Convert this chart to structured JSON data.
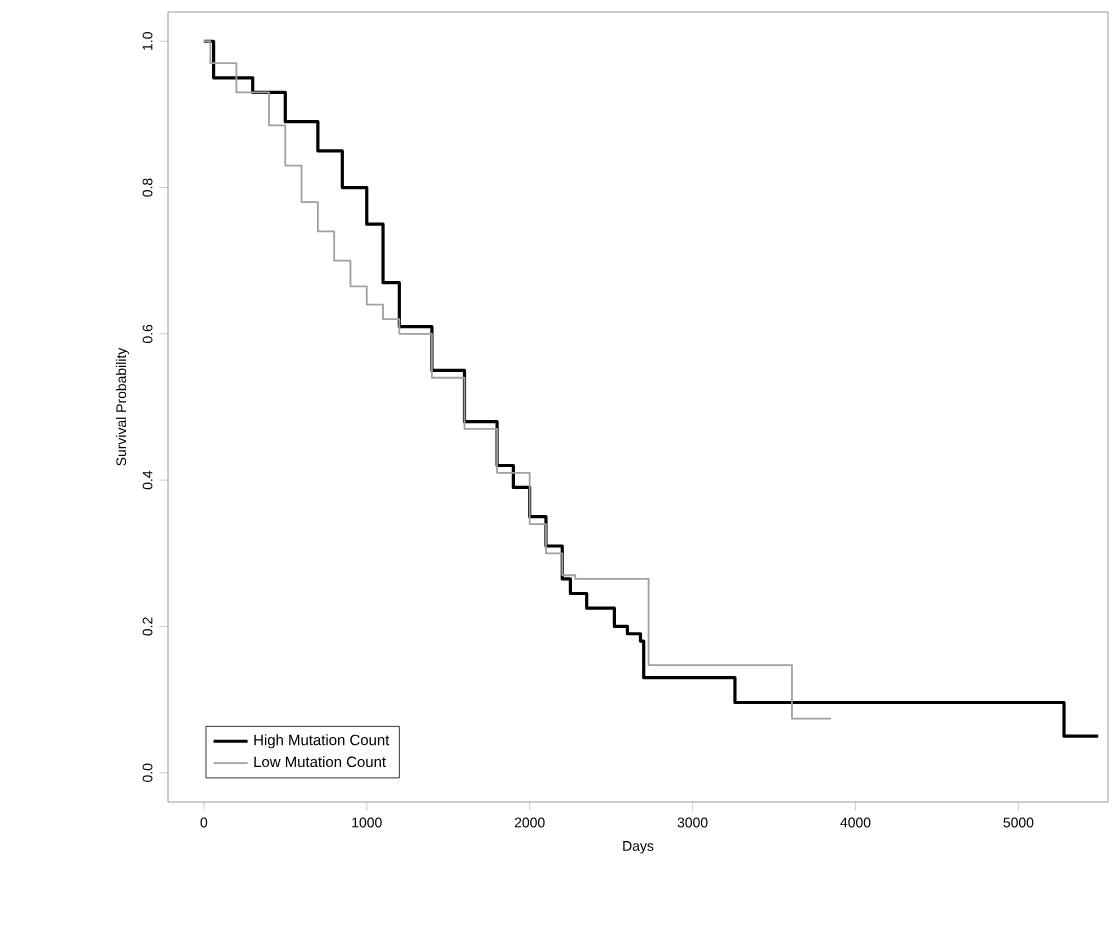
{
  "chart_data": {
    "type": "step",
    "xlabel": "Days",
    "ylabel": "Survival Probability",
    "xlim": [
      -220,
      5550
    ],
    "ylim": [
      -0.04,
      1.04
    ],
    "xticks": [
      0,
      1000,
      2000,
      3000,
      4000,
      5000
    ],
    "yticks": [
      {
        "value": 0,
        "label": "0.0"
      },
      {
        "value": 0.2,
        "label": "0.2"
      },
      {
        "value": 0.4,
        "label": "0.4"
      },
      {
        "value": 0.6,
        "label": "0.6"
      },
      {
        "value": 0.8,
        "label": "0.8"
      },
      {
        "value": 1,
        "label": "1.0"
      }
    ],
    "legend": "bottom left",
    "grid": false,
    "series": [
      {
        "name": "High Mutation Count",
        "color": "#000000",
        "x": [
          0,
          60,
          300,
          500,
          700,
          850,
          1000,
          1100,
          1200,
          1400,
          1600,
          1800,
          1900,
          2000,
          2100,
          2200,
          2250,
          2350,
          2520,
          2600,
          2680,
          2700,
          3260,
          5280,
          5490
        ],
        "values": [
          1.0,
          0.95,
          0.93,
          0.89,
          0.85,
          0.8,
          0.75,
          0.67,
          0.61,
          0.55,
          0.48,
          0.42,
          0.39,
          0.35,
          0.31,
          0.265,
          0.245,
          0.225,
          0.2,
          0.19,
          0.18,
          0.13,
          0.096,
          0.05,
          0.05
        ]
      },
      {
        "name": "Low Mutation Count",
        "color": "#a0a0a0",
        "x": [
          0,
          40,
          200,
          400,
          500,
          600,
          700,
          800,
          900,
          1000,
          1100,
          1200,
          1400,
          1600,
          1800,
          2000,
          2100,
          2200,
          2280,
          2730,
          3610,
          3850
        ],
        "values": [
          1.0,
          0.97,
          0.93,
          0.885,
          0.83,
          0.78,
          0.74,
          0.7,
          0.665,
          0.64,
          0.62,
          0.6,
          0.54,
          0.47,
          0.41,
          0.34,
          0.3,
          0.27,
          0.265,
          0.147,
          0.074,
          0.074
        ]
      }
    ]
  }
}
